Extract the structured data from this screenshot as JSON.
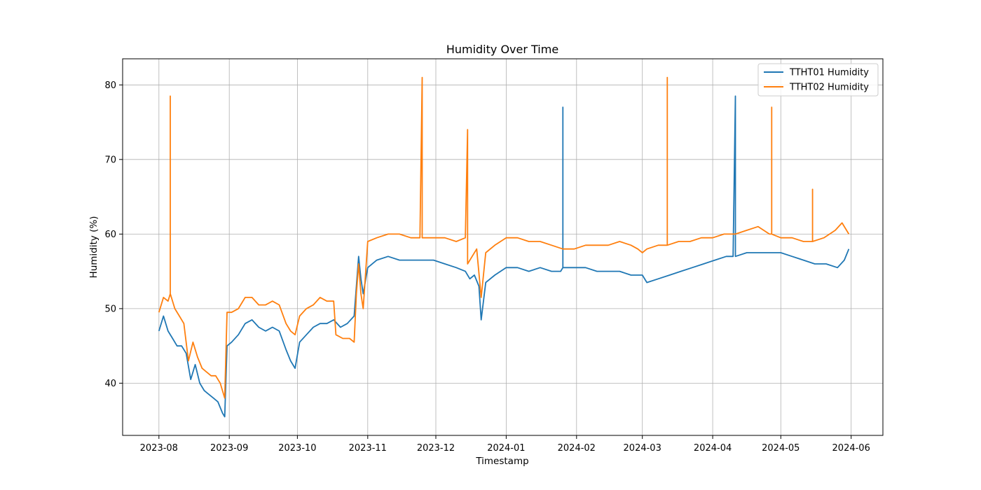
{
  "chart_data": {
    "type": "line",
    "title": "Humidity Over Time",
    "xlabel": "Timestamp",
    "ylabel": "Humidity (%)",
    "xlim": [
      "2023-07-16",
      "2024-06-15"
    ],
    "ylim": [
      33,
      83.5
    ],
    "grid": true,
    "legend_position": "top-right",
    "x_ticks": [
      "2023-08-01",
      "2023-09-01",
      "2023-10-01",
      "2023-11-01",
      "2023-12-01",
      "2024-01-01",
      "2024-02-01",
      "2024-03-01",
      "2024-04-01",
      "2024-05-01",
      "2024-06-01"
    ],
    "x_tick_labels": [
      "2023-08",
      "2023-09",
      "2023-10",
      "2023-11",
      "2023-12",
      "2024-01",
      "2024-02",
      "2024-03",
      "2024-04",
      "2024-05",
      "2024-06"
    ],
    "y_ticks": [
      40,
      50,
      60,
      70,
      80
    ],
    "y_tick_labels": [
      "40",
      "50",
      "60",
      "70",
      "80"
    ],
    "series": [
      {
        "name": "TTHT01 Humidity",
        "color": "#1f77b4",
        "points": [
          [
            "2023-08-01",
            47.0
          ],
          [
            "2023-08-03",
            49.0
          ],
          [
            "2023-08-05",
            47.0
          ],
          [
            "2023-08-07",
            46.0
          ],
          [
            "2023-08-09",
            45.0
          ],
          [
            "2023-08-11",
            45.0
          ],
          [
            "2023-08-13",
            44.0
          ],
          [
            "2023-08-15",
            40.5
          ],
          [
            "2023-08-17",
            42.5
          ],
          [
            "2023-08-19",
            40.0
          ],
          [
            "2023-08-21",
            39.0
          ],
          [
            "2023-08-23",
            38.5
          ],
          [
            "2023-08-25",
            38.0
          ],
          [
            "2023-08-27",
            37.5
          ],
          [
            "2023-08-29",
            36.0
          ],
          [
            "2023-08-30",
            35.5
          ],
          [
            "2023-08-31",
            45.0
          ],
          [
            "2023-09-02",
            45.5
          ],
          [
            "2023-09-05",
            46.5
          ],
          [
            "2023-09-08",
            48.0
          ],
          [
            "2023-09-11",
            48.5
          ],
          [
            "2023-09-14",
            47.5
          ],
          [
            "2023-09-17",
            47.0
          ],
          [
            "2023-09-20",
            47.5
          ],
          [
            "2023-09-23",
            47.0
          ],
          [
            "2023-09-26",
            44.5
          ],
          [
            "2023-09-28",
            43.0
          ],
          [
            "2023-09-30",
            42.0
          ],
          [
            "2023-10-02",
            45.5
          ],
          [
            "2023-10-05",
            46.5
          ],
          [
            "2023-10-08",
            47.5
          ],
          [
            "2023-10-11",
            48.0
          ],
          [
            "2023-10-14",
            48.0
          ],
          [
            "2023-10-17",
            48.5
          ],
          [
            "2023-10-20",
            47.5
          ],
          [
            "2023-10-23",
            48.0
          ],
          [
            "2023-10-26",
            49.0
          ],
          [
            "2023-10-27",
            53.0
          ],
          [
            "2023-10-28",
            57.0
          ],
          [
            "2023-10-29",
            54.0
          ],
          [
            "2023-10-30",
            52.0
          ],
          [
            "2023-11-01",
            55.5
          ],
          [
            "2023-11-05",
            56.5
          ],
          [
            "2023-11-10",
            57.0
          ],
          [
            "2023-11-15",
            56.5
          ],
          [
            "2023-11-20",
            56.5
          ],
          [
            "2023-11-25",
            56.5
          ],
          [
            "2023-11-30",
            56.5
          ],
          [
            "2023-12-05",
            56.0
          ],
          [
            "2023-12-10",
            55.5
          ],
          [
            "2023-12-14",
            55.0
          ],
          [
            "2023-12-16",
            54.0
          ],
          [
            "2023-12-18",
            54.5
          ],
          [
            "2023-12-20",
            53.0
          ],
          [
            "2023-12-21",
            48.5
          ],
          [
            "2023-12-23",
            53.5
          ],
          [
            "2023-12-27",
            54.5
          ],
          [
            "2024-01-01",
            55.5
          ],
          [
            "2024-01-06",
            55.5
          ],
          [
            "2024-01-11",
            55.0
          ],
          [
            "2024-01-16",
            55.5
          ],
          [
            "2024-01-21",
            55.0
          ],
          [
            "2024-01-25",
            55.0
          ],
          [
            "2024-01-26",
            55.5
          ],
          [
            "2024-01-26",
            77.0
          ],
          [
            "2024-01-26",
            55.5
          ],
          [
            "2024-01-30",
            55.5
          ],
          [
            "2024-02-05",
            55.5
          ],
          [
            "2024-02-10",
            55.0
          ],
          [
            "2024-02-15",
            55.0
          ],
          [
            "2024-02-20",
            55.0
          ],
          [
            "2024-02-25",
            54.5
          ],
          [
            "2024-02-28",
            54.5
          ],
          [
            "2024-03-01",
            54.5
          ],
          [
            "2024-03-03",
            53.5
          ],
          [
            "2024-03-08",
            54.0
          ],
          [
            "2024-03-13",
            54.5
          ],
          [
            "2024-03-18",
            55.0
          ],
          [
            "2024-03-23",
            55.5
          ],
          [
            "2024-03-28",
            56.0
          ],
          [
            "2024-04-02",
            56.5
          ],
          [
            "2024-04-07",
            57.0
          ],
          [
            "2024-04-10",
            57.0
          ],
          [
            "2024-04-11",
            78.5
          ],
          [
            "2024-04-11",
            57.0
          ],
          [
            "2024-04-16",
            57.5
          ],
          [
            "2024-04-21",
            57.5
          ],
          [
            "2024-04-26",
            57.5
          ],
          [
            "2024-05-01",
            57.5
          ],
          [
            "2024-05-06",
            57.0
          ],
          [
            "2024-05-11",
            56.5
          ],
          [
            "2024-05-16",
            56.0
          ],
          [
            "2024-05-21",
            56.0
          ],
          [
            "2024-05-26",
            55.5
          ],
          [
            "2024-05-29",
            56.5
          ],
          [
            "2024-05-31",
            58.0
          ]
        ]
      },
      {
        "name": "TTHT02 Humidity",
        "color": "#ff7f0e",
        "points": [
          [
            "2023-08-01",
            49.5
          ],
          [
            "2023-08-03",
            51.5
          ],
          [
            "2023-08-05",
            51.0
          ],
          [
            "2023-08-06",
            52.0
          ],
          [
            "2023-08-06",
            78.5
          ],
          [
            "2023-08-06",
            52.0
          ],
          [
            "2023-08-08",
            50.0
          ],
          [
            "2023-08-10",
            49.0
          ],
          [
            "2023-08-12",
            48.0
          ],
          [
            "2023-08-14",
            43.0
          ],
          [
            "2023-08-16",
            45.5
          ],
          [
            "2023-08-18",
            43.5
          ],
          [
            "2023-08-20",
            42.0
          ],
          [
            "2023-08-22",
            41.5
          ],
          [
            "2023-08-24",
            41.0
          ],
          [
            "2023-08-26",
            41.0
          ],
          [
            "2023-08-28",
            40.0
          ],
          [
            "2023-08-30",
            38.0
          ],
          [
            "2023-08-31",
            49.5
          ],
          [
            "2023-09-02",
            49.5
          ],
          [
            "2023-09-05",
            50.0
          ],
          [
            "2023-09-08",
            51.5
          ],
          [
            "2023-09-11",
            51.5
          ],
          [
            "2023-09-14",
            50.5
          ],
          [
            "2023-09-17",
            50.5
          ],
          [
            "2023-09-20",
            51.0
          ],
          [
            "2023-09-23",
            50.5
          ],
          [
            "2023-09-26",
            48.0
          ],
          [
            "2023-09-28",
            47.0
          ],
          [
            "2023-09-30",
            46.5
          ],
          [
            "2023-10-02",
            49.0
          ],
          [
            "2023-10-05",
            50.0
          ],
          [
            "2023-10-08",
            50.5
          ],
          [
            "2023-10-11",
            51.5
          ],
          [
            "2023-10-14",
            51.0
          ],
          [
            "2023-10-17",
            51.0
          ],
          [
            "2023-10-18",
            46.5
          ],
          [
            "2023-10-21",
            46.0
          ],
          [
            "2023-10-24",
            46.0
          ],
          [
            "2023-10-26",
            45.5
          ],
          [
            "2023-10-27",
            52.0
          ],
          [
            "2023-10-28",
            56.0
          ],
          [
            "2023-10-29",
            52.0
          ],
          [
            "2023-10-30",
            50.0
          ],
          [
            "2023-11-01",
            59.0
          ],
          [
            "2023-11-05",
            59.5
          ],
          [
            "2023-11-10",
            60.0
          ],
          [
            "2023-11-15",
            60.0
          ],
          [
            "2023-11-20",
            59.5
          ],
          [
            "2023-11-24",
            59.5
          ],
          [
            "2023-11-25",
            81.0
          ],
          [
            "2023-11-25",
            59.5
          ],
          [
            "2023-11-30",
            59.5
          ],
          [
            "2023-12-05",
            59.5
          ],
          [
            "2023-12-10",
            59.0
          ],
          [
            "2023-12-14",
            59.5
          ],
          [
            "2023-12-15",
            74.0
          ],
          [
            "2023-12-15",
            56.0
          ],
          [
            "2023-12-17",
            57.0
          ],
          [
            "2023-12-19",
            58.0
          ],
          [
            "2023-12-21",
            51.5
          ],
          [
            "2023-12-23",
            57.5
          ],
          [
            "2023-12-27",
            58.5
          ],
          [
            "2024-01-01",
            59.5
          ],
          [
            "2024-01-06",
            59.5
          ],
          [
            "2024-01-11",
            59.0
          ],
          [
            "2024-01-16",
            59.0
          ],
          [
            "2024-01-21",
            58.5
          ],
          [
            "2024-01-26",
            58.0
          ],
          [
            "2024-01-31",
            58.0
          ],
          [
            "2024-02-05",
            58.5
          ],
          [
            "2024-02-10",
            58.5
          ],
          [
            "2024-02-15",
            58.5
          ],
          [
            "2024-02-20",
            59.0
          ],
          [
            "2024-02-25",
            58.5
          ],
          [
            "2024-02-28",
            58.0
          ],
          [
            "2024-03-01",
            57.5
          ],
          [
            "2024-03-03",
            58.0
          ],
          [
            "2024-03-08",
            58.5
          ],
          [
            "2024-03-12",
            58.5
          ],
          [
            "2024-03-12",
            81.0
          ],
          [
            "2024-03-12",
            58.5
          ],
          [
            "2024-03-17",
            59.0
          ],
          [
            "2024-03-22",
            59.0
          ],
          [
            "2024-03-27",
            59.5
          ],
          [
            "2024-04-01",
            59.5
          ],
          [
            "2024-04-06",
            60.0
          ],
          [
            "2024-04-11",
            60.0
          ],
          [
            "2024-04-16",
            60.5
          ],
          [
            "2024-04-21",
            61.0
          ],
          [
            "2024-04-26",
            60.0
          ],
          [
            "2024-04-27",
            60.0
          ],
          [
            "2024-04-27",
            77.0
          ],
          [
            "2024-04-27",
            60.0
          ],
          [
            "2024-05-01",
            59.5
          ],
          [
            "2024-05-06",
            59.5
          ],
          [
            "2024-05-11",
            59.0
          ],
          [
            "2024-05-15",
            59.0
          ],
          [
            "2024-05-15",
            66.0
          ],
          [
            "2024-05-15",
            59.0
          ],
          [
            "2024-05-20",
            59.5
          ],
          [
            "2024-05-25",
            60.5
          ],
          [
            "2024-05-28",
            61.5
          ],
          [
            "2024-05-31",
            60.0
          ]
        ]
      }
    ]
  }
}
